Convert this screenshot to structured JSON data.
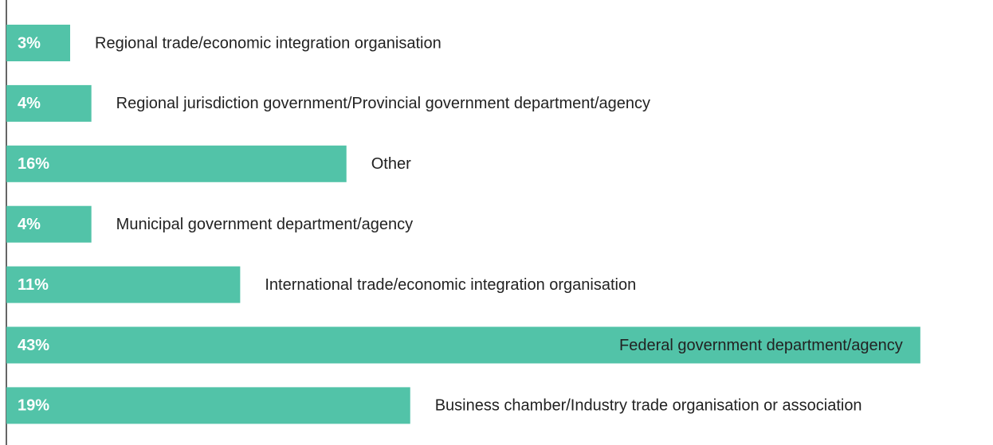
{
  "chart_data": {
    "type": "bar",
    "orientation": "horizontal",
    "categories": [
      "Regional trade/economic integration organisation",
      "Regional jurisdiction government/Provincial government department/agency",
      "Other",
      "Municipal government department/agency",
      "International trade/economic integration organisation",
      "Federal government department/agency",
      "Business chamber/Industry trade organisation or association"
    ],
    "values": [
      3,
      4,
      16,
      4,
      11,
      43,
      19
    ],
    "value_labels": [
      "3%",
      "4%",
      "16%",
      "4%",
      "11%",
      "43%",
      "19%"
    ],
    "color": "#52c3a8"
  }
}
